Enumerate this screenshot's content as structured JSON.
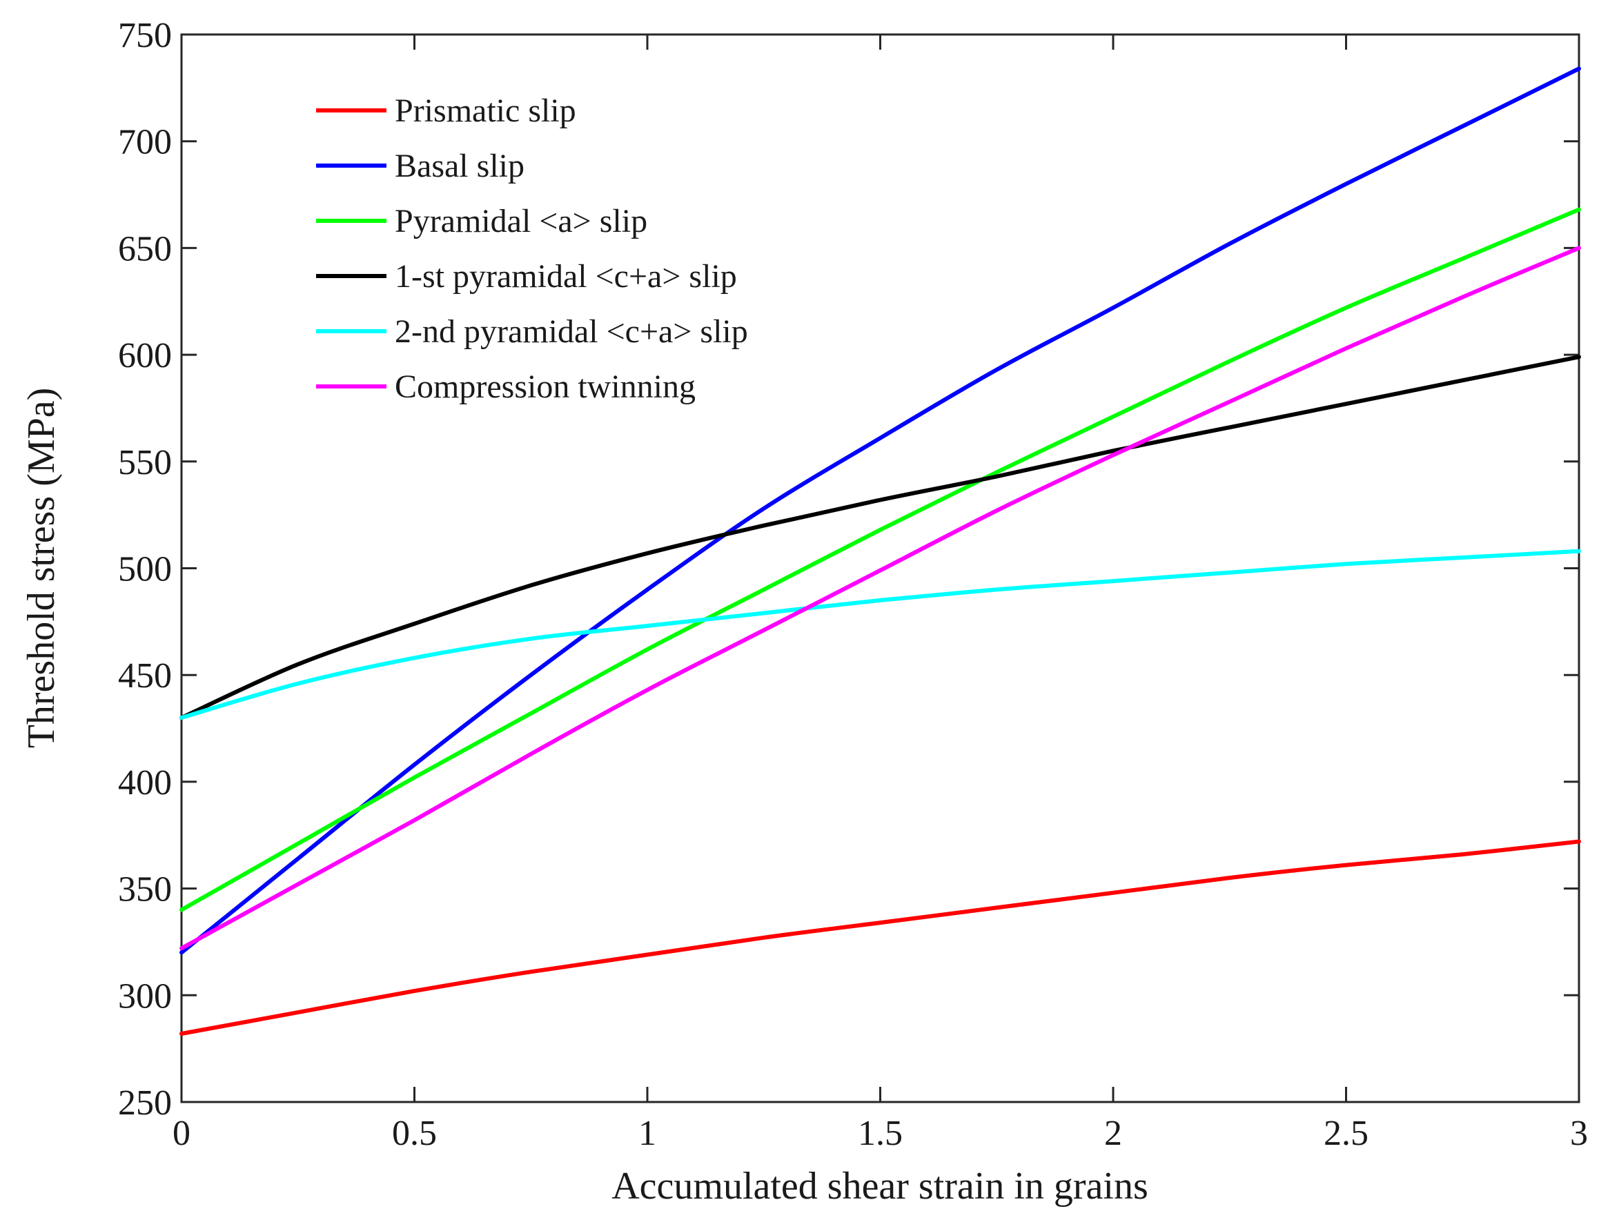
{
  "chart_data": {
    "type": "line",
    "title": "",
    "xlabel": "Accumulated shear strain in grains",
    "ylabel": "Threshold stress (MPa)",
    "xlim": [
      0,
      3
    ],
    "ylim": [
      250,
      750
    ],
    "xticks": [
      0,
      0.5,
      1,
      1.5,
      2,
      2.5,
      3
    ],
    "xtick_labels": [
      "0",
      "0.5",
      "1",
      "1.5",
      "2",
      "2.5",
      "3"
    ],
    "yticks": [
      250,
      300,
      350,
      400,
      450,
      500,
      550,
      600,
      650,
      700,
      750
    ],
    "ytick_labels": [
      "250",
      "300",
      "350",
      "400",
      "450",
      "500",
      "550",
      "600",
      "650",
      "700",
      "750"
    ],
    "grid": false,
    "legend_position": "top-left",
    "x": [
      0,
      0.25,
      0.5,
      0.75,
      1,
      1.25,
      1.5,
      1.75,
      2,
      2.25,
      2.5,
      2.75,
      3
    ],
    "series": [
      {
        "name": "Prismatic slip",
        "color": "#ff0000",
        "values": [
          282,
          292,
          302,
          311,
          319,
          327,
          334,
          341,
          348,
          355,
          361,
          366,
          372
        ]
      },
      {
        "name": "Basal slip",
        "color": "#0000ff",
        "values": [
          320,
          364,
          408,
          450,
          490,
          528,
          561,
          593,
          622,
          652,
          680,
          707,
          734
        ]
      },
      {
        "name": "Pyramidal <a> slip",
        "color": "#00ff00",
        "values": [
          340,
          371,
          402,
          432,
          462,
          490,
          518,
          545,
          571,
          597,
          622,
          645,
          668
        ]
      },
      {
        "name": "1-st pyramidal <c+a> slip",
        "color": "#000000",
        "values": [
          430,
          455,
          474,
          492,
          507,
          520,
          532,
          543,
          555,
          566,
          577,
          588,
          599
        ]
      },
      {
        "name": "2-nd pyramidal <c+a> slip",
        "color": "#00ffff",
        "values": [
          430,
          446,
          458,
          467,
          473,
          479,
          485,
          490,
          494,
          498,
          502,
          505,
          508
        ]
      },
      {
        "name": "Compression twinning",
        "color": "#ff00ff",
        "values": [
          322,
          352,
          382,
          413,
          443,
          471,
          499,
          527,
          553,
          578,
          603,
          627,
          650
        ]
      }
    ]
  }
}
